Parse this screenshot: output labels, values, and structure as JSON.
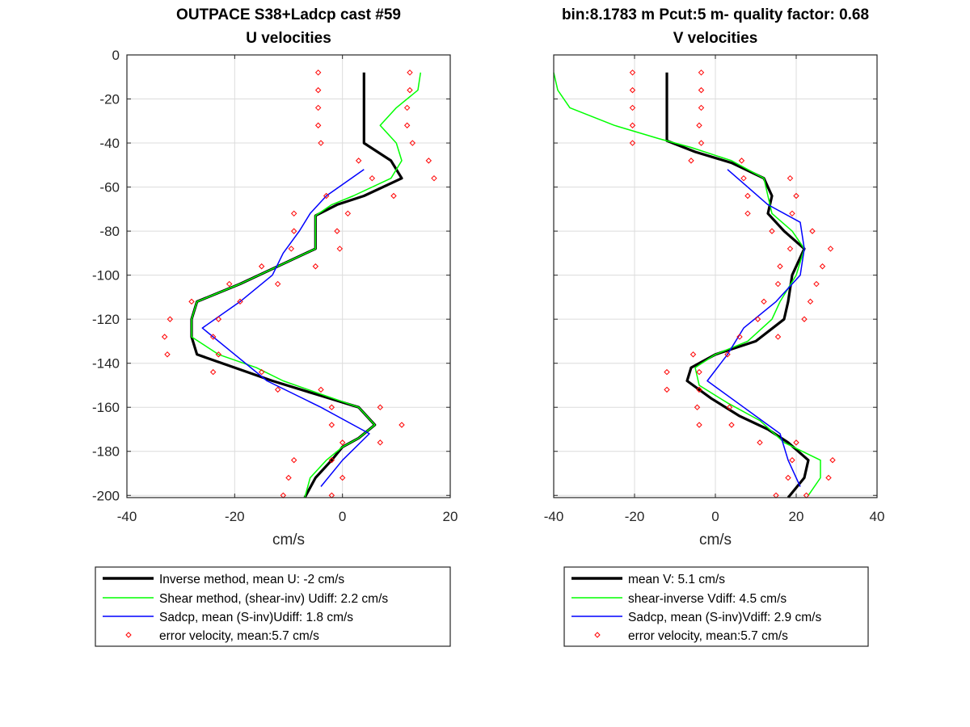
{
  "figure": {
    "background": "#ffffff",
    "colors": {
      "inverse": "#000000",
      "shear": "#00ff00",
      "sadcp": "#0000ff",
      "error": "#ff0000",
      "grid": "#dcdcdc",
      "axis": "#262626"
    }
  },
  "chart_data": [
    {
      "type": "line",
      "title": "OUTPACE S38+Ladcp cast #59",
      "subtitle": "U velocities",
      "xlabel": "cm/s",
      "ylabel": "",
      "xlim": [
        -40,
        20
      ],
      "ylim": [
        -201,
        0
      ],
      "xticks": [
        -40,
        -20,
        0,
        20
      ],
      "yticks": [
        0,
        -20,
        -40,
        -60,
        -80,
        -100,
        -120,
        -140,
        -160,
        -180,
        -200
      ],
      "grid": true,
      "legend_position": "below",
      "legend": [
        "Inverse method, mean U:  -2 cm/s",
        "Shear method, (shear-inv)  Udiff:  2.2 cm/s",
        "Sadcp, mean (S-inv)Udiff: 1.8 cm/s",
        "error velocity, mean:5.7 cm/s"
      ],
      "series": [
        {
          "name": "Inverse method, mean U:  -2 cm/s",
          "style": "line-thick",
          "color": "#000000",
          "points": [
            [
              4,
              -8
            ],
            [
              4,
              -40
            ],
            [
              9,
              -48
            ],
            [
              11,
              -56
            ],
            [
              4,
              -64
            ],
            [
              -1,
              -68
            ],
            [
              -5,
              -73
            ],
            [
              -5,
              -80
            ],
            [
              -5,
              -88
            ],
            [
              -12,
              -96
            ],
            [
              -19,
              -104
            ],
            [
              -27,
              -112
            ],
            [
              -28,
              -120
            ],
            [
              -28,
              -128
            ],
            [
              -27,
              -136
            ],
            [
              -20,
              -142
            ],
            [
              -13,
              -148
            ],
            [
              -5,
              -154
            ],
            [
              3,
              -160
            ],
            [
              6,
              -168
            ],
            [
              3,
              -174
            ],
            [
              0,
              -178
            ],
            [
              -2,
              -184
            ],
            [
              -5,
              -192
            ],
            [
              -7,
              -201
            ]
          ]
        },
        {
          "name": "Shear method, (shear-inv)  Udiff:  2.2 cm/s",
          "style": "line",
          "color": "#00ff00",
          "points": [
            [
              14.5,
              -8
            ],
            [
              14,
              -16
            ],
            [
              10,
              -24
            ],
            [
              7,
              -32
            ],
            [
              10,
              -40
            ],
            [
              11,
              -48
            ],
            [
              9,
              -56
            ],
            [
              2,
              -64
            ],
            [
              -2,
              -68
            ],
            [
              -5,
              -73
            ],
            [
              -5,
              -80
            ],
            [
              -5,
              -88
            ],
            [
              -12,
              -96
            ],
            [
              -19,
              -104
            ],
            [
              -27,
              -112
            ],
            [
              -28,
              -120
            ],
            [
              -28,
              -128
            ],
            [
              -23,
              -136
            ],
            [
              -16,
              -142
            ],
            [
              -11,
              -148
            ],
            [
              -4,
              -154
            ],
            [
              3,
              -160
            ],
            [
              6,
              -168
            ],
            [
              3,
              -174
            ],
            [
              0,
              -178
            ],
            [
              -3,
              -184
            ],
            [
              -6,
              -192
            ],
            [
              -7,
              -201
            ]
          ]
        },
        {
          "name": "Sadcp, mean (S-inv)Udiff: 1.8 cm/s",
          "style": "line",
          "color": "#0000ff",
          "points": [
            [
              4,
              -52
            ],
            [
              -3,
              -64
            ],
            [
              -6,
              -72
            ],
            [
              -8,
              -80
            ],
            [
              -11,
              -90
            ],
            [
              -13,
              -100
            ],
            [
              -19,
              -112
            ],
            [
              -26,
              -124
            ],
            [
              -20,
              -136
            ],
            [
              -14,
              -148
            ],
            [
              -4,
              -160
            ],
            [
              5,
              -172
            ],
            [
              0,
              -184
            ],
            [
              -4,
              -196
            ]
          ]
        },
        {
          "name": "error velocity, mean:5.7 cm/s",
          "style": "marker",
          "color": "#ff0000",
          "points": [
            [
              -4.5,
              -8
            ],
            [
              12.5,
              -8
            ],
            [
              -4.5,
              -16
            ],
            [
              12.5,
              -16
            ],
            [
              -4.5,
              -24
            ],
            [
              12,
              -24
            ],
            [
              -4.5,
              -32
            ],
            [
              12,
              -32
            ],
            [
              -4,
              -40
            ],
            [
              13,
              -40
            ],
            [
              3,
              -48
            ],
            [
              16,
              -48
            ],
            [
              5.5,
              -56
            ],
            [
              17,
              -56
            ],
            [
              -3,
              -64
            ],
            [
              9.5,
              -64
            ],
            [
              -9,
              -72
            ],
            [
              1,
              -72
            ],
            [
              -9,
              -80
            ],
            [
              -1,
              -80
            ],
            [
              -9.5,
              -88
            ],
            [
              -0.5,
              -88
            ],
            [
              -15,
              -96
            ],
            [
              -5,
              -96
            ],
            [
              -21,
              -104
            ],
            [
              -12,
              -104
            ],
            [
              -28,
              -112
            ],
            [
              -19,
              -112
            ],
            [
              -32,
              -120
            ],
            [
              -23,
              -120
            ],
            [
              -33,
              -128
            ],
            [
              -24,
              -128
            ],
            [
              -32.5,
              -136
            ],
            [
              -23,
              -136
            ],
            [
              -24,
              -144
            ],
            [
              -15,
              -144
            ],
            [
              -12,
              -152
            ],
            [
              -4,
              -152
            ],
            [
              -2,
              -160
            ],
            [
              7,
              -160
            ],
            [
              -2,
              -168
            ],
            [
              11,
              -168
            ],
            [
              0,
              -176
            ],
            [
              7,
              -176
            ],
            [
              -9,
              -184
            ],
            [
              -2,
              -184
            ],
            [
              -10,
              -192
            ],
            [
              0,
              -192
            ],
            [
              -11,
              -200
            ],
            [
              -2,
              -200
            ]
          ]
        }
      ]
    },
    {
      "type": "line",
      "title": "bin:8.1783 m  Pcut:5 m- quality factor:  0.68",
      "subtitle": "V velocities",
      "xlabel": "cm/s",
      "ylabel": "",
      "xlim": [
        -40,
        40
      ],
      "ylim": [
        -201,
        0
      ],
      "xticks": [
        -40,
        -20,
        0,
        20,
        40
      ],
      "yticks": [
        0,
        -20,
        -40,
        -60,
        -80,
        -100,
        -120,
        -140,
        -160,
        -180,
        -200
      ],
      "grid": true,
      "legend_position": "below",
      "legend": [
        "mean V:  5.1 cm/s",
        "shear-inverse Vdiff:  4.5 cm/s",
        "Sadcp, mean (S-inv)Vdiff: 2.9 cm/s",
        "error velocity, mean:5.7 cm/s"
      ],
      "series": [
        {
          "name": "mean V:  5.1 cm/s",
          "style": "line-thick",
          "color": "#000000",
          "points": [
            [
              -12,
              -8
            ],
            [
              -12,
              -39
            ],
            [
              -5,
              -44
            ],
            [
              4,
              -49
            ],
            [
              12,
              -56
            ],
            [
              14,
              -64
            ],
            [
              13,
              -72
            ],
            [
              17,
              -80
            ],
            [
              22,
              -88
            ],
            [
              19,
              -100
            ],
            [
              18,
              -112
            ],
            [
              17,
              -120
            ],
            [
              10,
              -130
            ],
            [
              0,
              -136
            ],
            [
              -6,
              -142
            ],
            [
              -7,
              -148
            ],
            [
              -1,
              -156
            ],
            [
              6,
              -164
            ],
            [
              13,
              -170
            ],
            [
              18,
              -176
            ],
            [
              23,
              -184
            ],
            [
              22,
              -192
            ],
            [
              18,
              -201
            ]
          ]
        },
        {
          "name": "shear-inverse Vdiff:  4.5 cm/s",
          "style": "line",
          "color": "#00ff00",
          "points": [
            [
              -40,
              -8
            ],
            [
              -39,
              -16
            ],
            [
              -36,
              -24
            ],
            [
              -25,
              -32
            ],
            [
              -14,
              -38
            ],
            [
              -6,
              -42
            ],
            [
              4,
              -48
            ],
            [
              12,
              -56
            ],
            [
              13,
              -64
            ],
            [
              14,
              -72
            ],
            [
              19,
              -80
            ],
            [
              22,
              -88
            ],
            [
              20,
              -100
            ],
            [
              16,
              -112
            ],
            [
              14,
              -120
            ],
            [
              8,
              -130
            ],
            [
              0,
              -136
            ],
            [
              -5,
              -142
            ],
            [
              -4,
              -150
            ],
            [
              3,
              -158
            ],
            [
              11,
              -166
            ],
            [
              17,
              -176
            ],
            [
              26,
              -184
            ],
            [
              26,
              -192
            ],
            [
              23,
              -200
            ]
          ]
        },
        {
          "name": "Sadcp, mean (S-inv)Vdiff: 2.9 cm/s",
          "style": "line",
          "color": "#0000ff",
          "points": [
            [
              3,
              -52
            ],
            [
              8,
              -60
            ],
            [
              13,
              -68
            ],
            [
              21,
              -76
            ],
            [
              22,
              -88
            ],
            [
              21,
              -100
            ],
            [
              15,
              -112
            ],
            [
              7,
              -124
            ],
            [
              3,
              -136
            ],
            [
              -2,
              -148
            ],
            [
              7,
              -160
            ],
            [
              16,
              -172
            ],
            [
              18,
              -184
            ],
            [
              21,
              -196
            ]
          ]
        },
        {
          "name": "error velocity, mean:5.7 cm/s",
          "style": "marker",
          "color": "#ff0000",
          "points": [
            [
              -20.5,
              -8
            ],
            [
              -3.5,
              -8
            ],
            [
              -20.5,
              -16
            ],
            [
              -3.5,
              -16
            ],
            [
              -20.5,
              -24
            ],
            [
              -3.5,
              -24
            ],
            [
              -20.5,
              -32
            ],
            [
              -4,
              -32
            ],
            [
              -20.5,
              -40
            ],
            [
              -3.5,
              -40
            ],
            [
              -6,
              -48
            ],
            [
              6.5,
              -48
            ],
            [
              7,
              -56
            ],
            [
              18.5,
              -56
            ],
            [
              8,
              -64
            ],
            [
              20,
              -64
            ],
            [
              8,
              -72
            ],
            [
              19,
              -72
            ],
            [
              14,
              -80
            ],
            [
              24,
              -80
            ],
            [
              18.5,
              -88
            ],
            [
              28.5,
              -88
            ],
            [
              16,
              -96
            ],
            [
              26.5,
              -96
            ],
            [
              15.5,
              -104
            ],
            [
              25,
              -104
            ],
            [
              12,
              -112
            ],
            [
              23.5,
              -112
            ],
            [
              10.5,
              -120
            ],
            [
              22,
              -120
            ],
            [
              6,
              -128
            ],
            [
              15.5,
              -128
            ],
            [
              -5.5,
              -136
            ],
            [
              3,
              -136
            ],
            [
              -12,
              -144
            ],
            [
              -4,
              -144
            ],
            [
              -12,
              -152
            ],
            [
              -4,
              -152
            ],
            [
              -4.5,
              -160
            ],
            [
              3.5,
              -160
            ],
            [
              -4,
              -168
            ],
            [
              4,
              -168
            ],
            [
              11,
              -176
            ],
            [
              20,
              -176
            ],
            [
              19,
              -184
            ],
            [
              29,
              -184
            ],
            [
              18,
              -192
            ],
            [
              28,
              -192
            ],
            [
              15,
              -200
            ],
            [
              22.5,
              -200
            ]
          ]
        }
      ]
    }
  ]
}
